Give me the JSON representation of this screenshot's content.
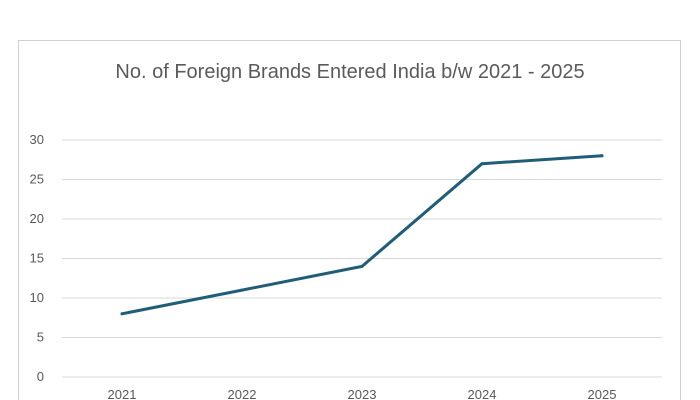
{
  "chart_data": {
    "type": "line",
    "title": "No. of Foreign Brands Entered India b/w 2021 - 2025",
    "xlabel": "",
    "ylabel": "",
    "categories": [
      "2021",
      "2022",
      "2023",
      "2024",
      "2025"
    ],
    "series": [
      {
        "values": [
          8,
          11,
          14,
          27,
          28
        ]
      }
    ],
    "ylim": [
      0,
      30
    ],
    "yticks": [
      "0",
      "5",
      "10",
      "15",
      "20",
      "25",
      "30"
    ],
    "grid": true,
    "legend": "none",
    "line_color": "#1f5d78",
    "grid_color": "#d9d9d9"
  }
}
